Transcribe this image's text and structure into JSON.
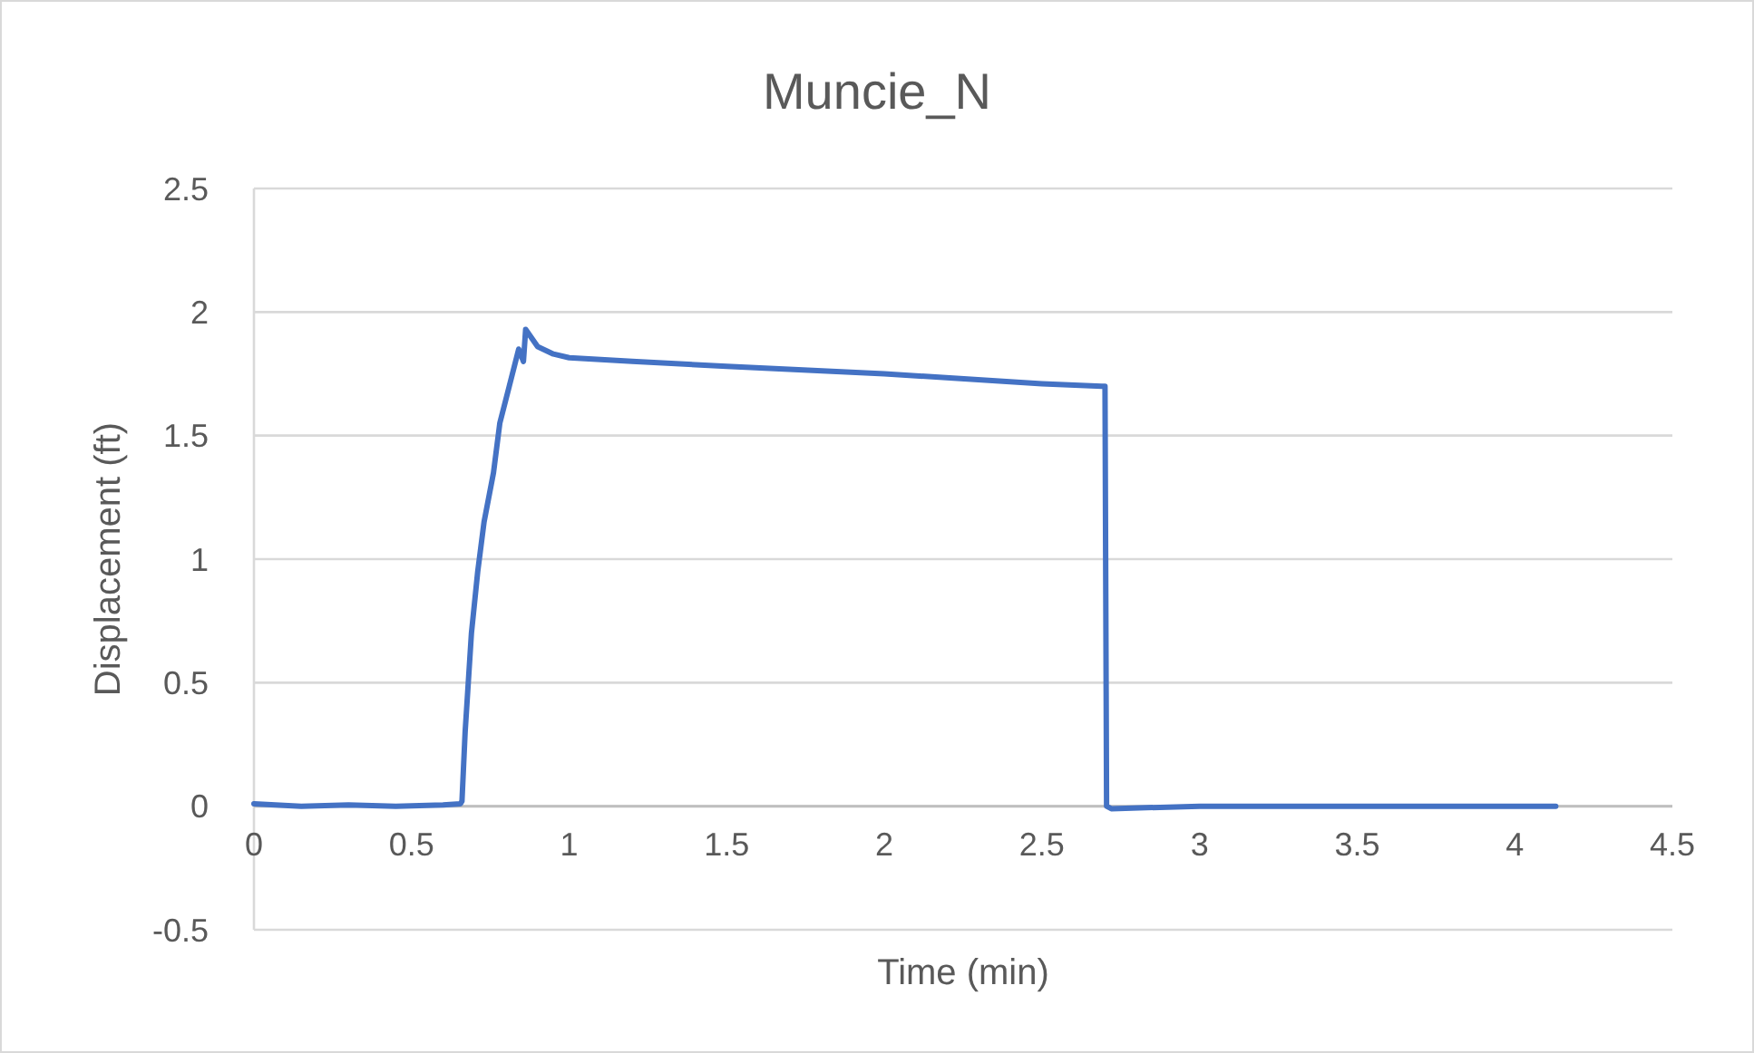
{
  "chart_data": {
    "type": "line",
    "title": "Muncie_N",
    "xlabel": "Time (min)",
    "ylabel": "Displacement (ft)",
    "xlim": [
      0,
      4.5
    ],
    "xticks": [
      0,
      0.5,
      1,
      1.5,
      2,
      2.5,
      3,
      3.5,
      4,
      4.5
    ],
    "ylim": [
      -0.5,
      2.5
    ],
    "yticks": [
      -0.5,
      0,
      0.5,
      1,
      1.5,
      2,
      2.5
    ],
    "grid": "y",
    "marker": "none",
    "line_style": "solid",
    "series": [
      {
        "color": "#4472c4",
        "x": [
          0,
          0.15,
          0.3,
          0.45,
          0.6,
          0.655,
          0.66,
          0.67,
          0.69,
          0.71,
          0.73,
          0.76,
          0.78,
          0.81,
          0.84,
          0.855,
          0.862,
          0.9,
          0.95,
          1.0,
          1.2,
          1.5,
          2.0,
          2.5,
          2.69,
          2.7,
          2.705,
          2.72,
          3,
          3.5,
          4.13
        ],
        "values": [
          0.01,
          0,
          0.005,
          0,
          0.005,
          0.01,
          0.02,
          0.3,
          0.7,
          0.95,
          1.15,
          1.35,
          1.55,
          1.7,
          1.85,
          1.8,
          1.93,
          1.86,
          1.83,
          1.815,
          1.8,
          1.78,
          1.75,
          1.71,
          1.7,
          1.7,
          0,
          -0.01,
          0,
          0,
          0
        ]
      }
    ]
  }
}
